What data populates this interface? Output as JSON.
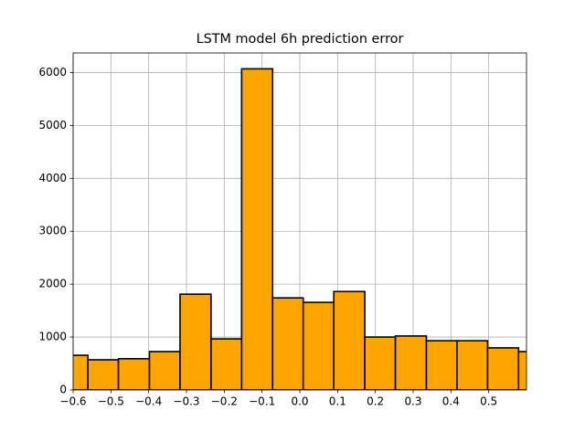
{
  "chart_data": {
    "type": "histogram",
    "title": "LSTM model 6h prediction error",
    "bins": [
      -0.642,
      -0.561,
      -0.48,
      -0.398,
      -0.317,
      -0.235,
      -0.154,
      -0.072,
      0.009,
      0.09,
      0.172,
      0.253,
      0.335,
      0.416,
      0.497,
      0.579,
      0.66
    ],
    "counts": [
      655,
      570,
      590,
      725,
      1810,
      965,
      6070,
      1740,
      1655,
      1860,
      1000,
      1020,
      930,
      930,
      795,
      725
    ],
    "color": "#ffa500",
    "edgecolor": "#000000",
    "xlim": [
      -0.6,
      0.6
    ],
    "xticks": [
      {
        "value": -0.6,
        "label": "−0.6"
      },
      {
        "value": -0.5,
        "label": "−0.5"
      },
      {
        "value": -0.4,
        "label": "−0.4"
      },
      {
        "value": -0.3,
        "label": "−0.3"
      },
      {
        "value": -0.2,
        "label": "−0.2"
      },
      {
        "value": -0.1,
        "label": "−0.1"
      },
      {
        "value": 0,
        "label": "0.0"
      },
      0.1,
      0.2,
      0.3,
      0.4,
      0.5
    ],
    "ylim": [
      0,
      6370
    ],
    "yticks": [
      0,
      1000,
      2000,
      3000,
      4000,
      5000,
      6000
    ],
    "grid": true
  }
}
